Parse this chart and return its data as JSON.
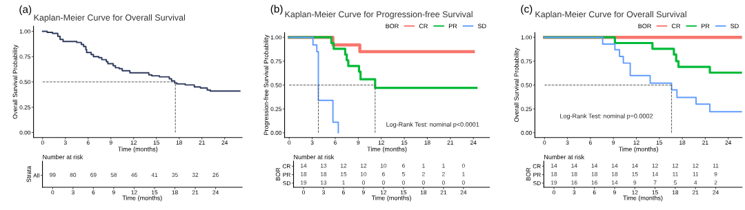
{
  "chart_data": [
    {
      "type": "step",
      "title": "Kaplan-Meier Curve for Overall Survival",
      "xlabel": "Time (months)",
      "ylabel": "Overall Survival Probability",
      "annotations": [
        "(a)"
      ],
      "xlim": [
        -1.2,
        26.3
      ],
      "xticks": [
        0,
        3,
        6,
        9,
        12,
        15,
        18,
        21,
        24
      ],
      "ylim": [
        -0.05,
        1.05
      ],
      "yticks": [
        {
          "value": 0,
          "label": "0.00"
        },
        {
          "value": 0.25,
          "label": "0.25"
        },
        {
          "value": 0.5,
          "label": "0.50"
        },
        {
          "value": 0.75,
          "label": "0.75"
        },
        {
          "value": 1,
          "label": "1.00"
        }
      ],
      "line_style": "solid",
      "ref_lines": [
        {
          "axis": "y",
          "value": 0.5,
          "line_style": "dashed"
        },
        {
          "axis": "x",
          "value": 17.5,
          "line_style": "dashed"
        }
      ],
      "series": [
        {
          "color": "#2e3a5c",
          "x": [
            0,
            0.6,
            1.3,
            2.0,
            2.3,
            2.7,
            3.1,
            4.5,
            5.1,
            5.4,
            5.7,
            5.8,
            6.4,
            6.7,
            7.4,
            7.8,
            8.4,
            8.6,
            9.3,
            9.6,
            10.1,
            10.5,
            11.5,
            14.0,
            14.4,
            15.4,
            16.7,
            17.0,
            17.4,
            17.7,
            18.8,
            20.0,
            20.8,
            21.7,
            22.1,
            26.0
          ],
          "values": [
            1.0,
            0.99,
            0.98,
            0.95,
            0.92,
            0.9,
            0.9,
            0.89,
            0.87,
            0.85,
            0.82,
            0.79,
            0.77,
            0.75,
            0.74,
            0.72,
            0.7,
            0.68,
            0.66,
            0.64,
            0.63,
            0.61,
            0.59,
            0.57,
            0.56,
            0.55,
            0.53,
            0.51,
            0.49,
            0.48,
            0.47,
            0.45,
            0.44,
            0.42,
            0.41,
            0.41
          ]
        }
      ]
    },
    {
      "type": "step",
      "title": "Kaplan-Meier Curve for Progression-free Survival",
      "xlabel": "Time (months)",
      "ylabel": "Progression-free Survival Probability",
      "annotations": [
        "(b)",
        "Log-Rank Test: nominal p<0.0001"
      ],
      "xlim": [
        -0.6,
        26.1
      ],
      "xticks": [
        0,
        3,
        6,
        9,
        12,
        15,
        18,
        21,
        24
      ],
      "ylim": [
        -0.05,
        1.05
      ],
      "yticks": [
        {
          "value": 0,
          "label": "0.00"
        },
        {
          "value": 0.25,
          "label": "0.25"
        },
        {
          "value": 0.5,
          "label": "0.50"
        },
        {
          "value": 0.75,
          "label": "0.75"
        },
        {
          "value": 1,
          "label": "1.00"
        }
      ],
      "line_style": "solid",
      "legend": "top right",
      "legend_title": "BOR",
      "ref_lines": [
        {
          "axis": "y",
          "value": 0.5,
          "line_style": "dashed"
        },
        {
          "axis": "x",
          "value": 3.8,
          "line_style": "dashed"
        },
        {
          "axis": "x",
          "value": 11.2,
          "line_style": "dashed"
        }
      ],
      "series": [
        {
          "name": "CR",
          "color": "#f8766d",
          "x": [
            0,
            5.7,
            9.2,
            24.0
          ],
          "values": [
            1.0,
            0.92,
            0.85,
            0.85
          ]
        },
        {
          "name": "PR",
          "color": "#00ba38",
          "x": [
            0,
            5.5,
            5.8,
            7.3,
            7.5,
            7.7,
            9.1,
            9.3,
            11.2,
            24.4
          ],
          "values": [
            1.0,
            0.94,
            0.88,
            0.82,
            0.76,
            0.7,
            0.64,
            0.56,
            0.47,
            0.47
          ]
        },
        {
          "name": "SD",
          "color": "#619cff",
          "x": [
            0,
            3.1,
            3.6,
            3.8,
            5.7,
            6.4
          ],
          "values": [
            1.0,
            0.92,
            0.85,
            0.34,
            0.11,
            0.0
          ]
        }
      ]
    },
    {
      "type": "step",
      "title": "Kaplan-Meier Curve for Overall Survival",
      "xlabel": "Time (months)",
      "ylabel": "Overall Survival Probability",
      "annotations": [
        "(c)",
        "Log-Rank Test: nominal p=0.0002"
      ],
      "xlim": [
        -1.25,
        25.8
      ],
      "xticks": [
        0,
        3,
        6,
        9,
        12,
        15,
        18,
        21,
        24
      ],
      "ylim": [
        -0.05,
        1.05
      ],
      "yticks": [
        {
          "value": 0,
          "label": "0.00"
        },
        {
          "value": 0.25,
          "label": "0.25"
        },
        {
          "value": 0.5,
          "label": "0.50"
        },
        {
          "value": 0.75,
          "label": "0.75"
        },
        {
          "value": 1,
          "label": "1.00"
        }
      ],
      "line_style": "solid",
      "legend": "top right",
      "legend_title": "BOR",
      "ref_lines": [
        {
          "axis": "y",
          "value": 0.5,
          "line_style": "dashed"
        },
        {
          "axis": "x",
          "value": 16.6,
          "line_style": "dashed"
        }
      ],
      "series": [
        {
          "name": "CR",
          "color": "#f8766d",
          "x": [
            0,
            25.8
          ],
          "values": [
            1.0,
            1.0
          ]
        },
        {
          "name": "PR",
          "color": "#00ba38",
          "x": [
            0,
            9.2,
            14.1,
            16.9,
            17.2,
            17.5,
            21.6,
            25.8
          ],
          "values": [
            1.0,
            0.94,
            0.88,
            0.82,
            0.75,
            0.69,
            0.63,
            0.63
          ]
        },
        {
          "name": "SD",
          "color": "#619cff",
          "x": [
            0,
            7.6,
            9.2,
            9.8,
            10.3,
            11.2,
            13.8,
            16.6,
            17.3,
            19.8,
            21.6,
            25.8
          ],
          "values": [
            1.0,
            0.93,
            0.87,
            0.8,
            0.73,
            0.6,
            0.52,
            0.45,
            0.37,
            0.3,
            0.22,
            0.22
          ]
        }
      ]
    },
    {
      "type": "heatmap",
      "title": "Number at risk",
      "xlabel": "Time (months)",
      "ylabel": "Strata",
      "data_labels": true,
      "categories": [
        "0",
        "3",
        "6",
        "9",
        "12",
        "15",
        "18",
        "21",
        "24"
      ],
      "y_categories": [
        "All"
      ],
      "cells": [
        [
          99,
          80,
          69,
          58,
          46,
          41,
          35,
          32,
          26
        ]
      ]
    },
    {
      "type": "heatmap",
      "title": "Number at risk",
      "xlabel": "Time (months)",
      "ylabel": "BOR",
      "data_labels": true,
      "categories": [
        "0",
        "3",
        "6",
        "9",
        "12",
        "15",
        "18",
        "21",
        "24"
      ],
      "y_categories": [
        "CR",
        "PR",
        "SD"
      ],
      "cells": [
        [
          14,
          13,
          12,
          12,
          10,
          6,
          1,
          1,
          0
        ],
        [
          18,
          18,
          15,
          10,
          6,
          5,
          2,
          2,
          1
        ],
        [
          19,
          13,
          1,
          0,
          0,
          0,
          0,
          0,
          0
        ]
      ]
    },
    {
      "type": "heatmap",
      "title": "Number at risk",
      "xlabel": "Time (months)",
      "ylabel": "BOR",
      "data_labels": true,
      "categories": [
        "0",
        "3",
        "6",
        "9",
        "12",
        "15",
        "18",
        "21",
        "24"
      ],
      "y_categories": [
        "CR",
        "PR",
        "SD"
      ],
      "cells": [
        [
          14,
          14,
          14,
          14,
          14,
          12,
          12,
          12,
          11
        ],
        [
          18,
          18,
          18,
          18,
          15,
          14,
          11,
          11,
          9
        ],
        [
          19,
          16,
          16,
          14,
          9,
          7,
          5,
          4,
          2
        ]
      ]
    }
  ]
}
